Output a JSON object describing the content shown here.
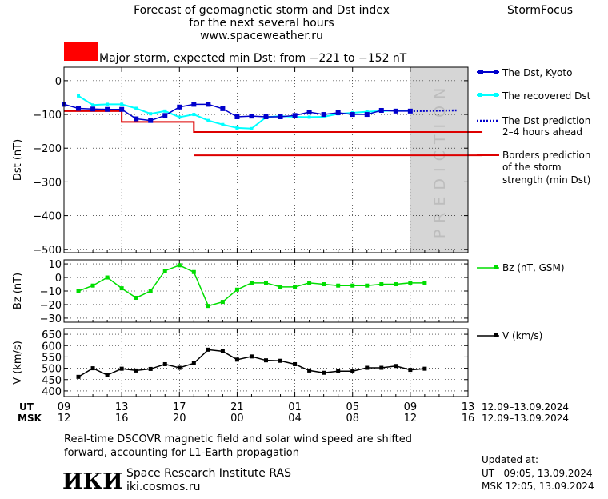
{
  "header": {
    "title_line1": "Forecast of geomagnetic storm and Dst index",
    "title_line2": "for the next several hours",
    "url": "www.spaceweather.ru",
    "brand": "StormFocus",
    "storm_text": "Major storm, expected min Dst: from −221 to −152 nT",
    "storm_color": "#ff0000"
  },
  "legend": {
    "dst_kyoto": "The Dst, Kyoto",
    "recovered": "The recovered Dst",
    "prediction_l1": "The Dst prediction",
    "prediction_l2": "2–4 hours ahead",
    "borders_l1": "Borders prediction",
    "borders_l2": "of the storm",
    "borders_l3": "strength (min Dst)",
    "bz": "Bz (nT, GSM)",
    "v": "V (km/s)"
  },
  "prediction_label": "PREDICTION",
  "time_axis": {
    "ut_label": "UT",
    "msk_label": "MSK",
    "ut_ticks": [
      "09",
      "13",
      "17",
      "21",
      "01",
      "05",
      "09",
      "13"
    ],
    "msk_ticks": [
      "12",
      "16",
      "20",
      "00",
      "04",
      "08",
      "12",
      "16"
    ],
    "date_range_ut": "12.09–13.09.2024",
    "date_range_msk": "12.09–13.09.2024"
  },
  "footer": {
    "note_line1": "Real-time DSCOVR magnetic field and solar wind speed are shifted",
    "note_line2": "forward, accounting for L1-Earth propagation",
    "logo": "ИКИ",
    "institute": "Space Research Institute RAS",
    "site": "iki.cosmos.ru",
    "updated_label": "Updated at:",
    "updated_ut": "UT   09:05, 13.09.2024",
    "updated_msk": "MSK 12:05, 13.09.2024"
  },
  "chart_data": [
    {
      "type": "line",
      "id": "dst",
      "ylabel": "Dst (nT)",
      "ylim": [
        -510,
        40
      ],
      "yticks": [
        0,
        -100,
        -200,
        -300,
        -400,
        -500
      ],
      "x_unit": "hours since 09 UT, 12.09.2024",
      "xlim": [
        0,
        28
      ],
      "prediction_band": [
        24,
        28
      ],
      "series": [
        {
          "name": "The Dst, Kyoto",
          "color": "#0000cc",
          "x": [
            0,
            1,
            2,
            3,
            4,
            5,
            6,
            7,
            8,
            9,
            10,
            11,
            12,
            13,
            14,
            15,
            16,
            17,
            18,
            19,
            20,
            21,
            22,
            23,
            24
          ],
          "values": [
            -70,
            -82,
            -84,
            -85,
            -85,
            -113,
            -118,
            -103,
            -78,
            -70,
            -70,
            -83,
            -107,
            -105,
            -107,
            -107,
            -103,
            -93,
            -100,
            -95,
            -100,
            -100,
            -88,
            -90,
            -90
          ]
        },
        {
          "name": "The recovered Dst",
          "color": "#00ffff",
          "x": [
            1,
            2,
            3,
            4,
            5,
            6,
            7,
            8,
            9,
            10,
            11,
            12,
            13,
            14,
            15,
            16,
            17,
            18,
            19,
            20,
            21,
            22,
            23,
            24
          ],
          "values": [
            -45,
            -72,
            -70,
            -70,
            -82,
            -98,
            -90,
            -108,
            -100,
            -118,
            -130,
            -140,
            -142,
            -108,
            -105,
            -107,
            -108,
            -107,
            -98,
            -95,
            -92,
            -90,
            -88,
            -88
          ]
        },
        {
          "name": "The Dst prediction 2–4 hours ahead",
          "color": "#0000cc",
          "dotted": true,
          "x": [
            24,
            27.2
          ],
          "values": [
            -90,
            -88
          ]
        }
      ],
      "borders": {
        "name": "Borders prediction of the storm strength (min Dst)",
        "color": "#dd0000",
        "upper": {
          "x": [
            0,
            4,
            4,
            9,
            9,
            29
          ],
          "values": [
            -90,
            -90,
            -122,
            -122,
            -152,
            -152
          ]
        },
        "lower": {
          "x": [
            9,
            29
          ],
          "values": [
            -221,
            -221
          ]
        }
      }
    },
    {
      "type": "line",
      "id": "bz",
      "ylabel": "Bz (nT)",
      "ylim": [
        -33,
        13
      ],
      "yticks": [
        10,
        0,
        -10,
        -20,
        -30
      ],
      "color": "#00dd00",
      "series_name": "Bz (nT, GSM)",
      "x": [
        1,
        2,
        3,
        4,
        5,
        6,
        7,
        8,
        9,
        10,
        11,
        12,
        13,
        14,
        15,
        16,
        17,
        18,
        19,
        20,
        21,
        22,
        23,
        24,
        25
      ],
      "values": [
        -10,
        -6,
        0,
        -8,
        -15,
        -10,
        5,
        9,
        4,
        -21,
        -18,
        -9,
        -4,
        -4,
        -7,
        -7,
        -4,
        -5,
        -6,
        -6,
        -6,
        -5,
        -5,
        -4,
        -4
      ]
    },
    {
      "type": "line",
      "id": "v",
      "ylabel": "V (km/s)",
      "ylim": [
        375,
        675
      ],
      "yticks": [
        650,
        600,
        550,
        500,
        450,
        400
      ],
      "color": "#000000",
      "series_name": "V (km/s)",
      "x": [
        1,
        2,
        3,
        4,
        5,
        6,
        7,
        8,
        9,
        10,
        11,
        12,
        13,
        14,
        15,
        16,
        17,
        18,
        19,
        20,
        21,
        22,
        23,
        24,
        25
      ],
      "values": [
        462,
        500,
        470,
        498,
        490,
        497,
        518,
        502,
        522,
        582,
        575,
        538,
        552,
        535,
        533,
        518,
        490,
        480,
        487,
        487,
        502,
        502,
        510,
        493,
        498
      ]
    }
  ]
}
